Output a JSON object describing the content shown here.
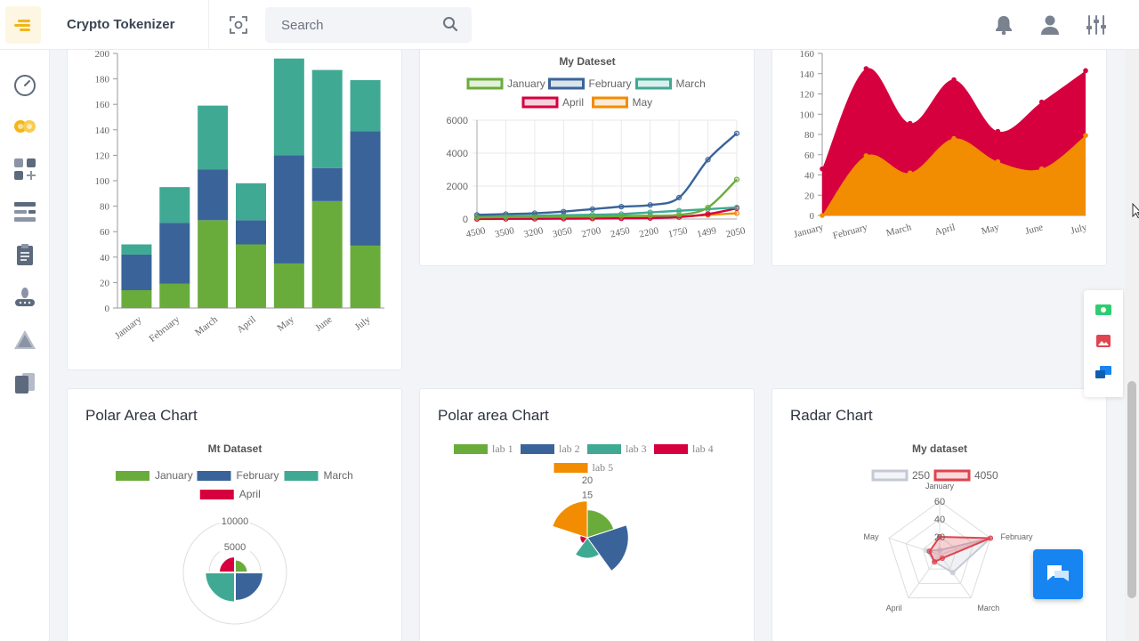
{
  "app": {
    "brand": "Crypto Tokenizer"
  },
  "search": {
    "placeholder": "Search"
  },
  "icons": {
    "menu": "hamburger-icon",
    "scan": "scan-icon",
    "search": "search-icon",
    "bell": "bell-icon",
    "user": "user-icon",
    "settings": "sliders-icon"
  },
  "sidebar": {
    "items": [
      "dashboard-icon",
      "coins-icon",
      "widgets-icon",
      "layout-icon",
      "clipboard-icon",
      "hand-icon",
      "warning-icon",
      "pages-icon"
    ]
  },
  "colors": {
    "green": "#6aac3c",
    "blue": "#3a6499",
    "teal": "#40a994",
    "red": "#d7003f",
    "orange": "#f28c00",
    "grey": "#c5c9d5",
    "accent": "#f3b51a",
    "chat": "#1685f2"
  },
  "cards": {
    "polar1": {
      "title": "Polar Area Chart"
    },
    "polar2": {
      "title": "Polar area Chart"
    },
    "radar": {
      "title": "Radar Chart"
    }
  },
  "chart_data": [
    {
      "id": "stacked-bar",
      "type": "bar",
      "stacked": true,
      "categories": [
        "January",
        "February",
        "March",
        "April",
        "May",
        "June",
        "July"
      ],
      "series": [
        {
          "color": "#6aac3c",
          "values": [
            14,
            19,
            69,
            50,
            35,
            84,
            49
          ]
        },
        {
          "color": "#3a6499",
          "values": [
            28,
            48,
            40,
            19,
            85,
            26,
            90
          ]
        },
        {
          "color": "#40a994",
          "values": [
            8,
            28,
            50,
            29,
            76,
            77,
            40
          ]
        }
      ],
      "yticks": [
        "0",
        "20",
        "40",
        "60",
        "80",
        "100",
        "120",
        "140",
        "160",
        "180",
        "200"
      ],
      "ylim": [
        0,
        200
      ]
    },
    {
      "id": "line",
      "type": "line",
      "title": "My Dateset",
      "categories": [
        "4500",
        "3500",
        "3200",
        "3050",
        "2700",
        "2450",
        "2200",
        "1750",
        "1499",
        "2050"
      ],
      "yticks": [
        "0",
        "2000",
        "4000",
        "6000"
      ],
      "ylim": [
        0,
        6000
      ],
      "series": [
        {
          "name": "January",
          "color": "#6aac3c",
          "values": [
            100,
            120,
            130,
            140,
            150,
            180,
            200,
            250,
            700,
            2400
          ]
        },
        {
          "name": "February",
          "color": "#3a6499",
          "values": [
            250,
            300,
            350,
            450,
            600,
            750,
            850,
            1300,
            3600,
            5200
          ]
        },
        {
          "name": "March",
          "color": "#40a994",
          "values": [
            150,
            170,
            200,
            230,
            260,
            300,
            400,
            500,
            600,
            700
          ]
        },
        {
          "name": "April",
          "color": "#d7003f",
          "values": [
            10,
            15,
            20,
            25,
            30,
            40,
            60,
            120,
            300,
            650
          ]
        },
        {
          "name": "May",
          "color": "#f28c00",
          "values": [
            0,
            10,
            20,
            30,
            40,
            60,
            80,
            140,
            250,
            350
          ]
        }
      ]
    },
    {
      "id": "area",
      "type": "area",
      "categories": [
        "January",
        "February",
        "March",
        "April",
        "May",
        "June",
        "July"
      ],
      "yticks": [
        "0",
        "20",
        "40",
        "60",
        "80",
        "100",
        "120",
        "140",
        "160"
      ],
      "ylim": [
        0,
        160
      ],
      "series": [
        {
          "color": "#d7003f",
          "values": [
            46,
            145,
            91,
            134,
            83,
            112,
            143
          ]
        },
        {
          "color": "#f28c00",
          "values": [
            0,
            59,
            42,
            76,
            53,
            46,
            79
          ]
        }
      ]
    },
    {
      "id": "polar1",
      "type": "polar",
      "title": "Mt Dataset",
      "labels": [
        "January",
        "February",
        "March",
        "April"
      ],
      "colors": [
        "#6aac3c",
        "#3a6499",
        "#40a994",
        "#d7003f"
      ],
      "values": [
        2500,
        5500,
        5800,
        3100
      ],
      "ticks": [
        "5000",
        "10000"
      ],
      "rmax": 10000
    },
    {
      "id": "polar2",
      "type": "polar",
      "labels": [
        "lab 1",
        "lab 2",
        "lab 3",
        "lab 4",
        "lab 5"
      ],
      "colors": [
        "#6aac3c",
        "#3a6499",
        "#40a994",
        "#d7003f",
        "#f28c00"
      ],
      "values": [
        9.5,
        14,
        7,
        2.5,
        12.5
      ],
      "ticks": [
        "15",
        "20"
      ],
      "rmax": 20
    },
    {
      "id": "radar",
      "type": "radar",
      "title": "My dataset",
      "axes": [
        "January",
        "February",
        "March",
        "April",
        "May"
      ],
      "ticks": [
        "20",
        "40",
        "60"
      ],
      "rmax": 60,
      "series": [
        {
          "name": "250",
          "color": "#c5c9d5",
          "values": [
            5,
            60,
            25,
            10,
            15
          ]
        },
        {
          "name": "4050",
          "color": "#e0444e",
          "values": [
            20,
            60,
            5,
            10,
            12
          ]
        }
      ]
    }
  ]
}
